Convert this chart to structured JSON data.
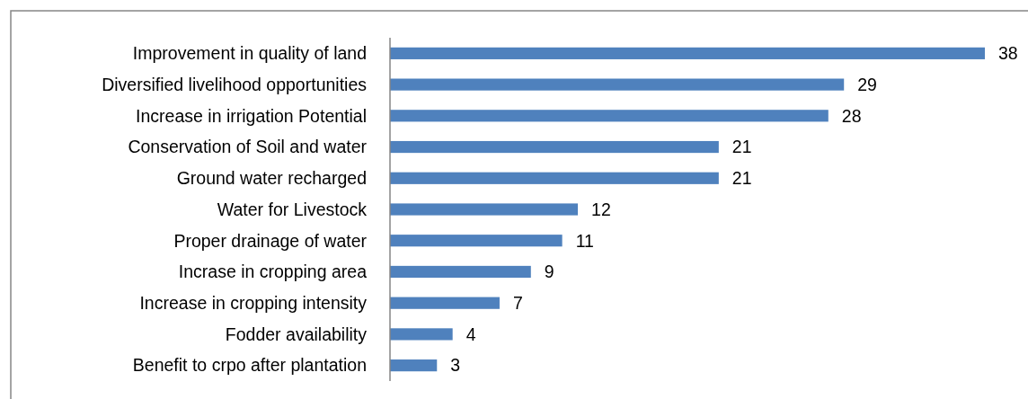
{
  "chart_data": {
    "type": "bar",
    "orientation": "horizontal",
    "categories": [
      "Improvement in quality of land",
      "Diversified livelihood opportunities",
      "Increase in irrigation Potential",
      "Conservation of Soil and water",
      "Ground water recharged",
      "Water for Livestock",
      "Proper drainage of water",
      "Incrase in cropping area",
      "Increase in cropping intensity",
      "Fodder availability",
      "Benefit to crpo after plantation"
    ],
    "values": [
      38,
      29,
      28,
      21,
      21,
      12,
      11,
      9,
      7,
      4,
      3
    ],
    "color": "#4f81bd",
    "data_labels": true
  }
}
